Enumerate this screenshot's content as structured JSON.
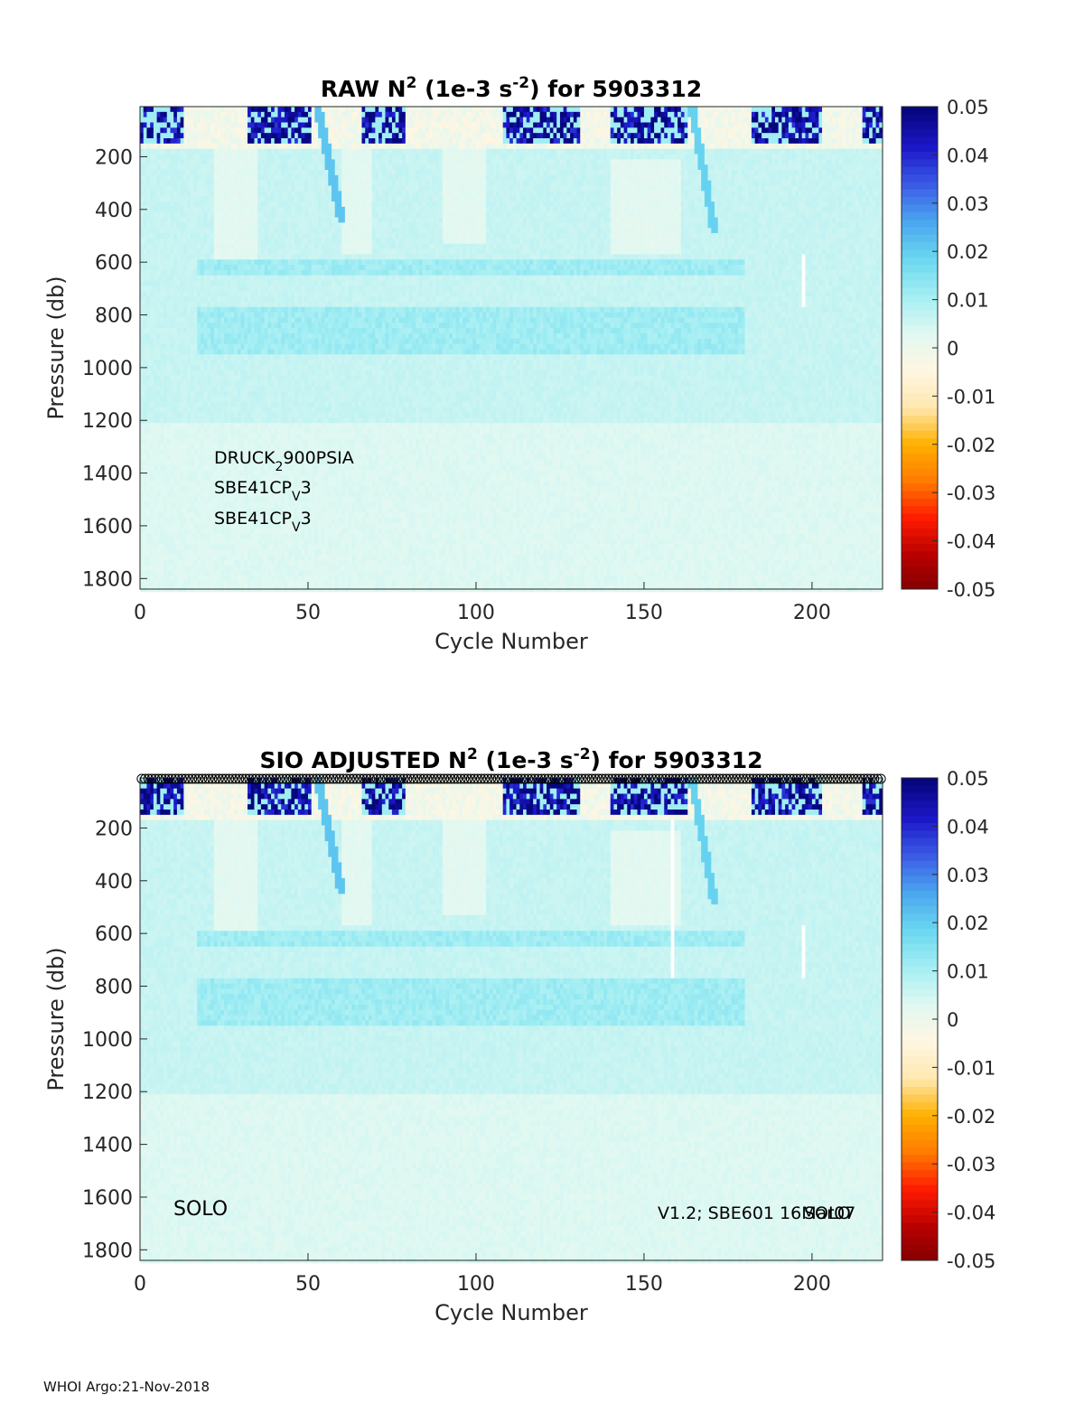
{
  "footer": "WHOI Argo:21-Nov-2018",
  "colors": {
    "cmap": [
      "#7f0000",
      "#b80000",
      "#ff1a00",
      "#ff7a00",
      "#ffb000",
      "#ffe8b0",
      "#fff6e2",
      "#dff8f2",
      "#a3eef3",
      "#6ad7f0",
      "#4aa6ee",
      "#3b5be6",
      "#1c17c8",
      "#06067e"
    ]
  },
  "chart_data": [
    {
      "type": "heatmap",
      "title": {
        "prefix": "RAW N",
        "sup1": "2",
        "mid": " (1e-3 s",
        "sup2": "-2",
        "suffix": ") for 5903312"
      },
      "xlabel": "Cycle Number",
      "ylabel": "Pressure (db)",
      "xlim": [
        0,
        221
      ],
      "ylim": [
        10,
        1840
      ],
      "y_reversed": true,
      "xticks": [
        "0",
        "50",
        "100",
        "150",
        "200"
      ],
      "yticks": [
        "200",
        "400",
        "600",
        "800",
        "1000",
        "1200",
        "1400",
        "1600",
        "1800"
      ],
      "colorbar": {
        "clim": [
          -0.05,
          0.05
        ],
        "ticks": [
          "0.05",
          "0.04",
          "0.03",
          "0.02",
          "0.01",
          "0",
          "-0.01",
          "-0.02",
          "-0.03",
          "-0.04",
          "-0.05"
        ]
      },
      "annotations": [
        {
          "text": "DRUCK",
          "sub": "2",
          "rest": "900PSIA"
        },
        {
          "text": "SBE41CP",
          "sub": "V",
          "rest": "3"
        },
        {
          "text": "SBE41CP",
          "sub": "V",
          "rest": "3"
        }
      ],
      "features": {
        "surface_layer_max_db": 160,
        "strong_layer_cycles": [
          [
            0,
            12
          ],
          [
            32,
            50
          ],
          [
            66,
            78
          ],
          [
            108,
            130
          ],
          [
            140,
            162
          ],
          [
            182,
            202
          ],
          [
            215,
            221
          ]
        ],
        "mode_water_bands_db": [
          [
            580,
            640
          ],
          [
            760,
            940
          ]
        ],
        "gap_cycles": [
          197
        ],
        "notes_values_range": [
          -0.01,
          0.05
        ]
      }
    },
    {
      "type": "heatmap",
      "title": {
        "prefix": "SIO  ADJUSTED N",
        "sup1": "2",
        "mid": " (1e-3 s",
        "sup2": "-2",
        "suffix": ") for 5903312"
      },
      "xlabel": "Cycle Number",
      "ylabel": "Pressure (db)",
      "xlim": [
        0,
        221
      ],
      "ylim": [
        10,
        1840
      ],
      "y_reversed": true,
      "xticks": [
        "0",
        "50",
        "100",
        "150",
        "200"
      ],
      "yticks": [
        "200",
        "400",
        "600",
        "800",
        "1000",
        "1200",
        "1400",
        "1600",
        "1800"
      ],
      "colorbar": {
        "clim": [
          -0.05,
          0.05
        ],
        "ticks": [
          "0.05",
          "0.04",
          "0.03",
          "0.02",
          "0.01",
          "0",
          "-0.01",
          "-0.02",
          "-0.03",
          "-0.04",
          "-0.05"
        ]
      },
      "annotations": [
        {
          "text": "SOLO"
        },
        {
          "text": "V1.2; SBE601 16Mar07"
        },
        {
          "text": "SOLO"
        }
      ],
      "quality_markers": {
        "symbol": "circle",
        "cycles_from": 1,
        "cycles_to": 221,
        "color": "#000000"
      },
      "features": {
        "surface_layer_max_db": 160,
        "strong_layer_cycles": [
          [
            0,
            12
          ],
          [
            32,
            50
          ],
          [
            66,
            78
          ],
          [
            108,
            130
          ],
          [
            140,
            162
          ],
          [
            182,
            202
          ],
          [
            215,
            221
          ]
        ],
        "mode_water_bands_db": [
          [
            580,
            640
          ],
          [
            760,
            940
          ]
        ],
        "gap_cycles": [
          158,
          197
        ]
      }
    }
  ]
}
